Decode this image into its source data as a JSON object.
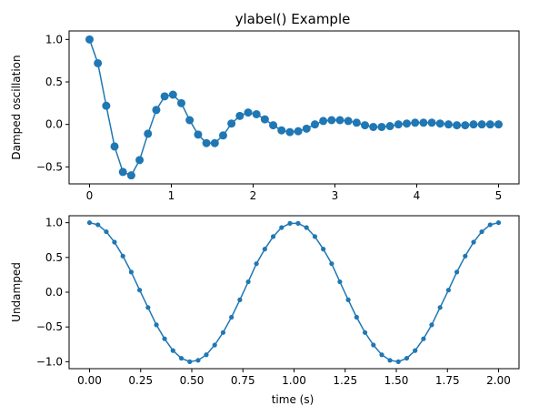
{
  "chart_data": [
    {
      "type": "line",
      "title": "ylabel() Example",
      "xlabel": "",
      "ylabel": "Damped oscillation",
      "xlim": [
        -0.25,
        5.25
      ],
      "ylim": [
        -0.7,
        1.1
      ],
      "xticks": [
        "0",
        "1",
        "2",
        "3",
        "4",
        "5"
      ],
      "xtick_values": [
        0,
        1,
        2,
        3,
        4,
        5
      ],
      "yticks": [
        "−0.5",
        "0.0",
        "0.5",
        "1.0"
      ],
      "ytick_values": [
        -0.5,
        0.0,
        0.5,
        1.0
      ],
      "color": "#1f77b4",
      "marker": "large-circle",
      "x": [
        0,
        0.102,
        0.204,
        0.306,
        0.408,
        0.51,
        0.612,
        0.714,
        0.816,
        0.918,
        1.02,
        1.122,
        1.224,
        1.327,
        1.429,
        1.531,
        1.633,
        1.735,
        1.837,
        1.939,
        2.041,
        2.143,
        2.245,
        2.347,
        2.449,
        2.551,
        2.653,
        2.755,
        2.857,
        2.959,
        3.061,
        3.163,
        3.265,
        3.367,
        3.469,
        3.571,
        3.673,
        3.776,
        3.878,
        3.98,
        4.082,
        4.184,
        4.286,
        4.388,
        4.49,
        4.592,
        4.694,
        4.796,
        4.898,
        5.0
      ],
      "y": [
        1.0,
        0.72,
        0.22,
        -0.26,
        -0.56,
        -0.6,
        -0.42,
        -0.11,
        0.17,
        0.33,
        0.35,
        0.25,
        0.05,
        -0.12,
        -0.22,
        -0.22,
        -0.13,
        0.01,
        0.1,
        0.14,
        0.12,
        0.06,
        -0.01,
        -0.07,
        -0.09,
        -0.08,
        -0.05,
        0.0,
        0.04,
        0.05,
        0.05,
        0.04,
        0.02,
        -0.01,
        -0.03,
        -0.03,
        -0.02,
        0.0,
        0.01,
        0.02,
        0.02,
        0.02,
        0.01,
        0.0,
        -0.01,
        -0.01,
        0.0,
        0.0,
        0.0,
        0.0
      ]
    },
    {
      "type": "line",
      "title": "",
      "xlabel": "time (s)",
      "ylabel": "Undamped",
      "xlim": [
        -0.1,
        2.1
      ],
      "ylim": [
        -1.1,
        1.1
      ],
      "xticks": [
        "0.00",
        "0.25",
        "0.50",
        "0.75",
        "1.00",
        "1.25",
        "1.50",
        "1.75",
        "2.00"
      ],
      "xtick_values": [
        0,
        0.25,
        0.5,
        0.75,
        1.0,
        1.25,
        1.5,
        1.75,
        2.0
      ],
      "yticks": [
        "−1.0",
        "−0.5",
        "0.0",
        "0.5",
        "1.0"
      ],
      "ytick_values": [
        -1.0,
        -0.5,
        0.0,
        0.5,
        1.0
      ],
      "color": "#1f77b4",
      "marker": "small-dot",
      "x": [
        0,
        0.041,
        0.082,
        0.122,
        0.163,
        0.204,
        0.245,
        0.286,
        0.327,
        0.367,
        0.408,
        0.449,
        0.49,
        0.531,
        0.571,
        0.612,
        0.653,
        0.694,
        0.735,
        0.776,
        0.816,
        0.857,
        0.898,
        0.939,
        0.98,
        1.02,
        1.061,
        1.102,
        1.143,
        1.184,
        1.224,
        1.265,
        1.306,
        1.347,
        1.388,
        1.429,
        1.469,
        1.51,
        1.551,
        1.592,
        1.633,
        1.673,
        1.714,
        1.755,
        1.796,
        1.837,
        1.878,
        1.918,
        1.959,
        2.0
      ],
      "y": [
        1.0,
        0.97,
        0.87,
        0.72,
        0.52,
        0.29,
        0.03,
        -0.22,
        -0.47,
        -0.67,
        -0.84,
        -0.95,
        -1.0,
        -0.98,
        -0.9,
        -0.76,
        -0.58,
        -0.36,
        -0.11,
        0.15,
        0.41,
        0.62,
        0.8,
        0.93,
        0.99,
        0.99,
        0.93,
        0.8,
        0.62,
        0.41,
        0.15,
        -0.11,
        -0.36,
        -0.58,
        -0.76,
        -0.9,
        -0.98,
        -1.0,
        -0.95,
        -0.84,
        -0.67,
        -0.47,
        -0.22,
        0.03,
        0.29,
        0.52,
        0.72,
        0.87,
        0.97,
        1.0
      ]
    }
  ]
}
